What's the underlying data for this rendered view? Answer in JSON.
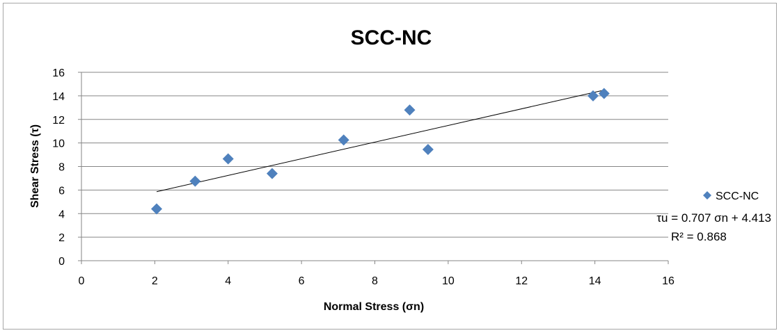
{
  "chart_data": {
    "type": "scatter",
    "title": "SCC-NC",
    "xlabel": "Normal Stress (σn)",
    "ylabel": "Shear Stress (τ)",
    "xlim": [
      0,
      16
    ],
    "ylim": [
      0,
      16
    ],
    "xticks": [
      0,
      2,
      4,
      6,
      8,
      10,
      12,
      14,
      16
    ],
    "yticks": [
      0,
      2,
      4,
      6,
      8,
      10,
      12,
      14,
      16
    ],
    "grid": "horizontal",
    "legend_position": "right",
    "series": [
      {
        "name": "SCC-NC",
        "color": "#4f81bd",
        "marker": "diamond",
        "x": [
          2.05,
          3.1,
          4.0,
          5.2,
          7.15,
          8.95,
          9.45,
          13.95,
          14.25
        ],
        "y": [
          4.4,
          6.75,
          8.65,
          7.4,
          10.25,
          12.8,
          9.45,
          14.0,
          14.2
        ]
      }
    ],
    "trendline": {
      "type": "linear",
      "slope": 0.707,
      "intercept": 4.413,
      "x_range": [
        2.05,
        14.25
      ],
      "color": "#000000"
    },
    "annotations": {
      "equation": "τu = 0.707 σn + 4.413",
      "r_squared": "R² = 0.868"
    }
  }
}
